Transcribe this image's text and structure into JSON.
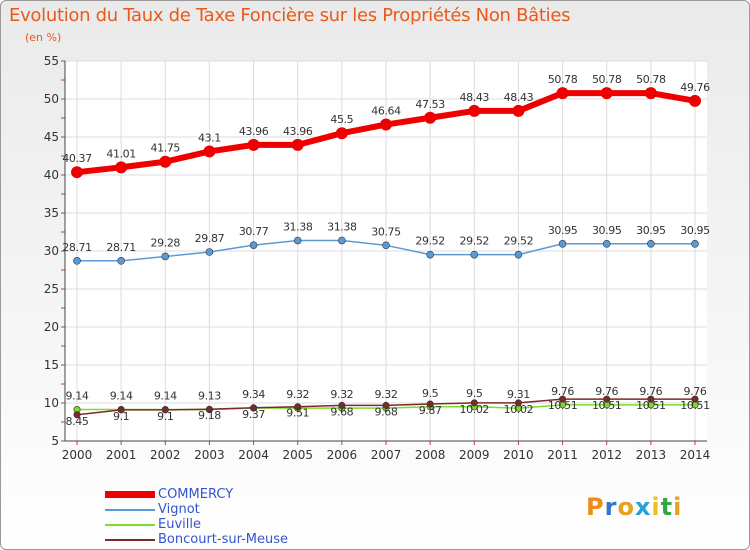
{
  "header": {
    "title": "Evolution du Taux de Taxe Foncière sur les Propriétés Non Bâties",
    "unit": "(en %)"
  },
  "brand": {
    "text": "Proxiti",
    "colors": [
      "#f08a18",
      "#2f77c8",
      "#e8a020",
      "#28a0d8",
      "#f0c020",
      "#30a848",
      "#e8a020"
    ]
  },
  "chart_data": {
    "type": "line",
    "title": "Evolution du Taux de Taxe Foncière sur les Propriétés Non Bâties",
    "ylabel": "(en %)",
    "xlabel": "",
    "x": [
      "2000",
      "2001",
      "2002",
      "2003",
      "2004",
      "2005",
      "2006",
      "2007",
      "2008",
      "2009",
      "2010",
      "2011",
      "2012",
      "2013",
      "2014"
    ],
    "ylim": [
      5,
      55
    ],
    "yticks": [
      5,
      10,
      15,
      20,
      25,
      30,
      35,
      40,
      45,
      50,
      55
    ],
    "grid": true,
    "legend_position": "bottom-left",
    "series": [
      {
        "name": "COMMERCY",
        "color": "#ee0000",
        "values": [
          40.37,
          41.01,
          41.75,
          43.1,
          43.96,
          43.96,
          45.5,
          46.64,
          47.53,
          48.43,
          48.43,
          50.78,
          50.78,
          50.78,
          49.76
        ],
        "labels": [
          "40.37",
          "41.01",
          "41.75",
          "43.1",
          "43.96",
          "43.96",
          "45.5",
          "46.64",
          "47.53",
          "48.43",
          "48.43",
          "50.78",
          "50.78",
          "50.78",
          "49.76"
        ]
      },
      {
        "name": "Vignot",
        "color": "#5b9bd5",
        "values": [
          28.71,
          28.71,
          29.28,
          29.87,
          30.77,
          31.38,
          31.38,
          30.75,
          29.52,
          29.52,
          29.52,
          30.95,
          30.95,
          30.95,
          30.95
        ],
        "labels": [
          "28.71",
          "28.71",
          "29.28",
          "29.87",
          "30.77",
          "31.38",
          "31.38",
          "30.75",
          "29.52",
          "29.52",
          "29.52",
          "30.95",
          "30.95",
          "30.95",
          "30.95"
        ]
      },
      {
        "name": "Euville",
        "color": "#7cdc2a",
        "values": [
          9.14,
          9.14,
          9.14,
          9.13,
          9.34,
          9.32,
          9.32,
          9.32,
          9.5,
          9.5,
          9.31,
          9.76,
          9.76,
          9.76,
          9.76
        ],
        "labels": [
          "9.14",
          "9.14",
          "9.14",
          "9.13",
          "9.34",
          "9.32",
          "9.32",
          "9.32",
          "9.5",
          "9.5",
          "9.31",
          "9.76",
          "9.76",
          "9.76",
          "9.76"
        ]
      },
      {
        "name": "Boncourt-sur-Meuse",
        "color": "#7a2a2a",
        "values": [
          8.45,
          9.1,
          9.1,
          9.18,
          9.37,
          9.51,
          9.68,
          9.68,
          9.87,
          10.02,
          10.02,
          10.51,
          10.51,
          10.51,
          10.51
        ],
        "labels": [
          "8.45",
          "9.1",
          "9.1",
          "9.18",
          "9.37",
          "9.51",
          "9.68",
          "9.68",
          "9.87",
          "10.02",
          "10.02",
          "10.51",
          "10.51",
          "10.51",
          "10.51"
        ]
      }
    ]
  }
}
